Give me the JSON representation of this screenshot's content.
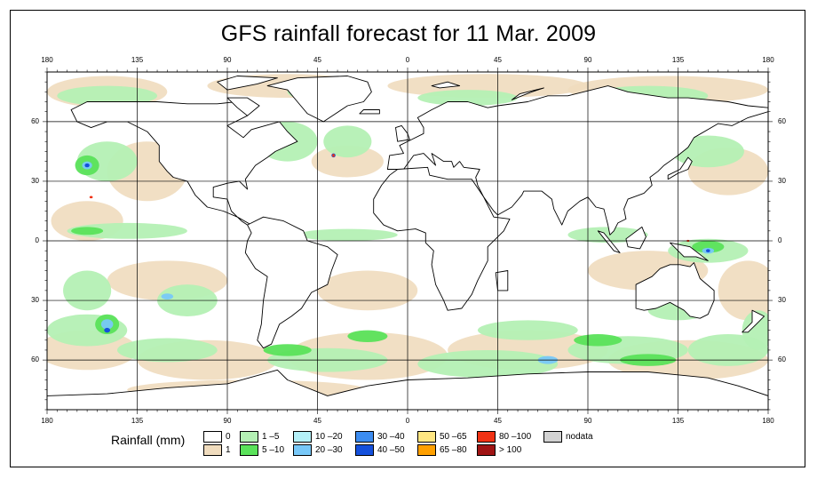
{
  "title": "GFS rainfall forecast for 11 Mar. 2009",
  "map": {
    "projection": "equirectangular",
    "lon_range": [
      -180,
      180
    ],
    "lat_range": [
      -85,
      85
    ],
    "gridlines": true,
    "land_color": "#ffffff",
    "coastline_color": "#000000",
    "lon_ticks": [
      "180",
      "135",
      "90",
      "45",
      "0",
      "45",
      "90",
      "135",
      "180"
    ],
    "lat_ticks": [
      "60",
      "30",
      "0",
      "30",
      "60"
    ]
  },
  "legend": {
    "title": "Rainfall (mm)",
    "items": [
      {
        "label": "0",
        "color": "#ffffff"
      },
      {
        "label": "1",
        "color": "#f0dcbe"
      },
      {
        "label": "1 –5",
        "color": "#b4f0b4"
      },
      {
        "label": "5 –10",
        "color": "#5ae25a"
      },
      {
        "label": "10 –20",
        "color": "#b4f0f8"
      },
      {
        "label": "20 –30",
        "color": "#78c8f8"
      },
      {
        "label": "30 –40",
        "color": "#3c8cf0"
      },
      {
        "label": "40 –50",
        "color": "#1450dc"
      },
      {
        "label": "50 –65",
        "color": "#ffe682"
      },
      {
        "label": "65 –80",
        "color": "#ffa000"
      },
      {
        "label": "80 –100",
        "color": "#f03214"
      },
      {
        "label": "> 100",
        "color": "#a01414"
      },
      {
        "label": "nodata",
        "color": "#d2d2d2"
      }
    ]
  }
}
